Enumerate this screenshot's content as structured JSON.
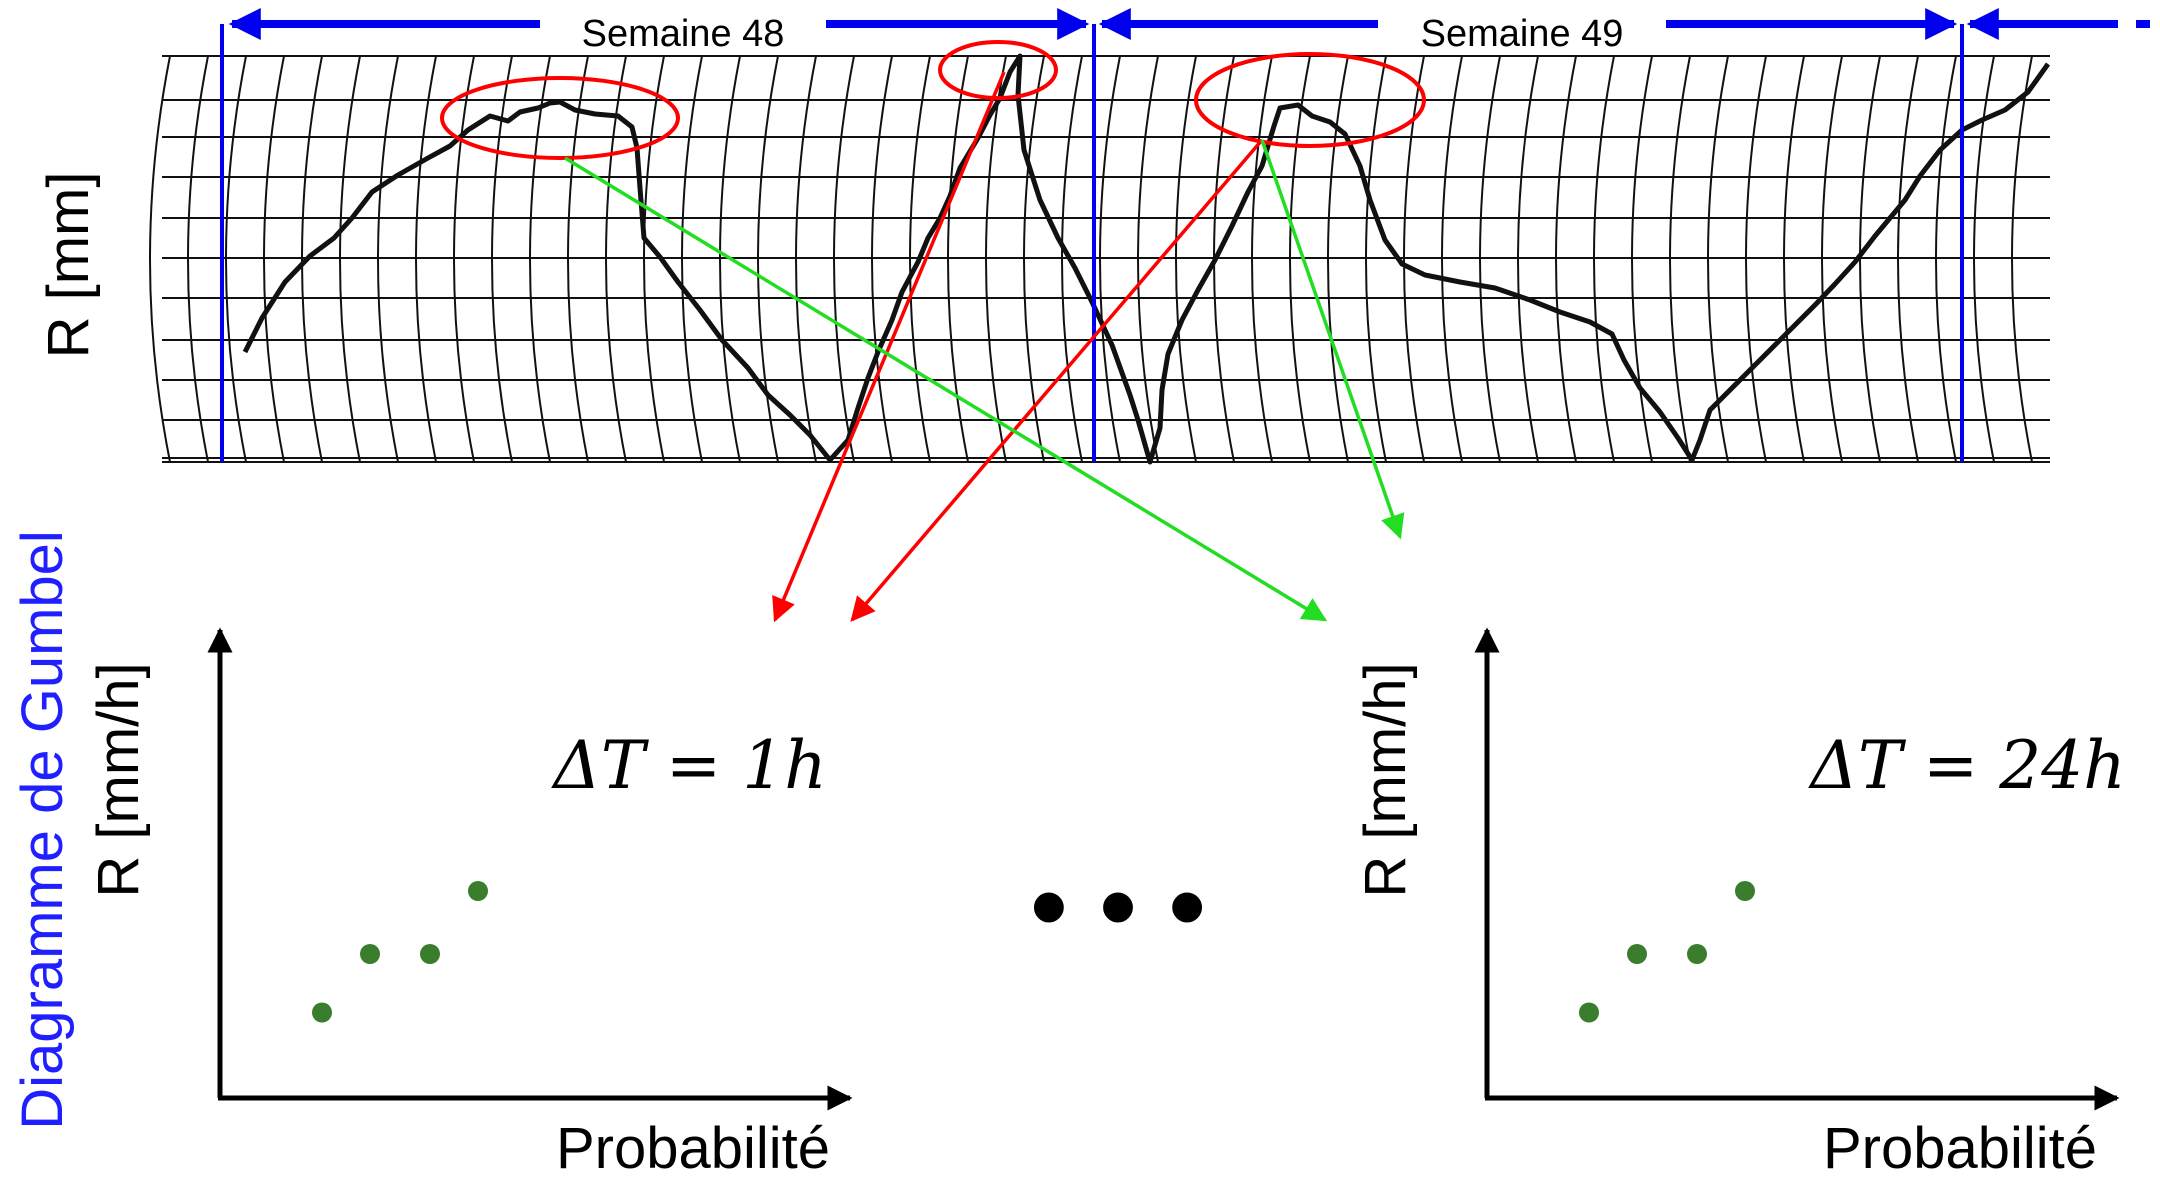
{
  "title": "",
  "top_panel": {
    "y_label": "R [mm]",
    "week_labels": [
      "Semaine 48",
      "Semaine 49"
    ]
  },
  "side_label": "Diagramme de Gumbel",
  "plots": [
    {
      "y_label": "R [mm/h]",
      "x_label": "Probabilité",
      "delta_t_label": "ΔT = 1h",
      "points": [
        [
          0.17,
          0.19
        ],
        [
          0.25,
          0.32
        ],
        [
          0.35,
          0.32
        ],
        [
          0.43,
          0.46
        ]
      ]
    },
    {
      "y_label": "R [mm/h]",
      "x_label": "Probabilité",
      "delta_t_label": "ΔT = 24h",
      "points": [
        [
          0.17,
          0.19
        ],
        [
          0.25,
          0.32
        ],
        [
          0.35,
          0.32
        ],
        [
          0.43,
          0.46
        ]
      ]
    }
  ],
  "ellipsis": "• • •",
  "colors": {
    "week_arrows": "#0000ee",
    "highlight": "#ff0000",
    "mapping_green": "#22dd22",
    "gumbel_points": "#3a7d2c",
    "side_label": "#1f1fff",
    "trace": "#111111"
  }
}
